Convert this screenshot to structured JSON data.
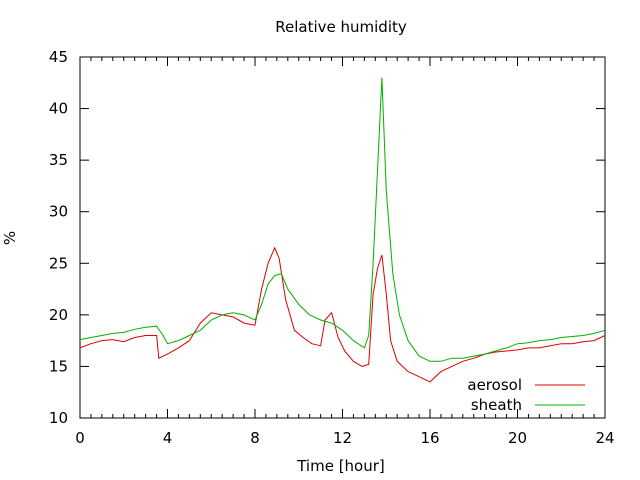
{
  "chart_data": {
    "type": "line",
    "title": "Relative humidity",
    "xlabel": "Time [hour]",
    "ylabel": "%",
    "xlim": [
      0,
      24
    ],
    "ylim": [
      10,
      45
    ],
    "xticks": [
      0,
      4,
      8,
      12,
      16,
      20,
      24
    ],
    "yticks": [
      10,
      15,
      20,
      25,
      30,
      35,
      40,
      45
    ],
    "grid": false,
    "legend": "bottom-right",
    "series": [
      {
        "name": "aerosol",
        "color": "#e00000",
        "x": [
          0,
          0.5,
          1,
          1.5,
          2,
          2.5,
          3,
          3.5,
          3.6,
          4,
          4.5,
          5,
          5.5,
          6,
          6.5,
          7,
          7.5,
          8,
          8.3,
          8.6,
          8.9,
          9.1,
          9.4,
          9.8,
          10.2,
          10.6,
          11,
          11.2,
          11.5,
          11.8,
          12.1,
          12.5,
          12.9,
          13.2,
          13.4,
          13.6,
          13.8,
          14,
          14.2,
          14.5,
          15,
          15.5,
          16,
          16.5,
          17,
          17.5,
          18,
          18.5,
          19,
          19.5,
          20,
          20.5,
          21,
          21.5,
          22,
          22.5,
          23,
          23.5,
          24
        ],
        "y": [
          16.8,
          17.2,
          17.5,
          17.6,
          17.4,
          17.8,
          18.0,
          18.0,
          15.8,
          16.2,
          16.8,
          17.5,
          19.2,
          20.2,
          20.0,
          19.8,
          19.2,
          19.0,
          22.5,
          25.0,
          26.5,
          25.5,
          21.5,
          18.5,
          17.8,
          17.2,
          17.0,
          19.5,
          20.2,
          17.8,
          16.5,
          15.5,
          15.0,
          15.2,
          22.0,
          24.5,
          25.8,
          22.0,
          17.5,
          15.5,
          14.5,
          14.0,
          13.5,
          14.5,
          15.0,
          15.5,
          15.8,
          16.2,
          16.4,
          16.5,
          16.6,
          16.8,
          16.8,
          17.0,
          17.2,
          17.2,
          17.4,
          17.5,
          18.0
        ]
      },
      {
        "name": "sheath",
        "color": "#00b000",
        "x": [
          0,
          0.5,
          1,
          1.5,
          2,
          2.5,
          3,
          3.5,
          3.8,
          4,
          4.5,
          5,
          5.5,
          6,
          6.5,
          7,
          7.5,
          8,
          8.3,
          8.6,
          8.9,
          9.2,
          9.5,
          10,
          10.5,
          11,
          11.5,
          12,
          12.5,
          13,
          13.2,
          13.4,
          13.6,
          13.8,
          14,
          14.3,
          14.6,
          15,
          15.5,
          16,
          16.5,
          17,
          17.5,
          18,
          18.5,
          19,
          19.5,
          20,
          20.5,
          21,
          21.5,
          22,
          22.5,
          23,
          23.5,
          24
        ],
        "y": [
          17.6,
          17.8,
          18.0,
          18.2,
          18.3,
          18.6,
          18.8,
          18.9,
          18.0,
          17.2,
          17.5,
          18.0,
          18.5,
          19.5,
          20.0,
          20.2,
          20.0,
          19.5,
          21.0,
          23.0,
          23.8,
          24.0,
          22.5,
          21.0,
          20.0,
          19.5,
          19.2,
          18.5,
          17.5,
          16.8,
          18.0,
          25.0,
          34.0,
          43.0,
          32.0,
          24.0,
          20.0,
          17.5,
          16.0,
          15.5,
          15.5,
          15.8,
          15.8,
          16.0,
          16.2,
          16.5,
          16.8,
          17.2,
          17.3,
          17.5,
          17.6,
          17.8,
          17.9,
          18.0,
          18.2,
          18.5
        ]
      }
    ]
  }
}
